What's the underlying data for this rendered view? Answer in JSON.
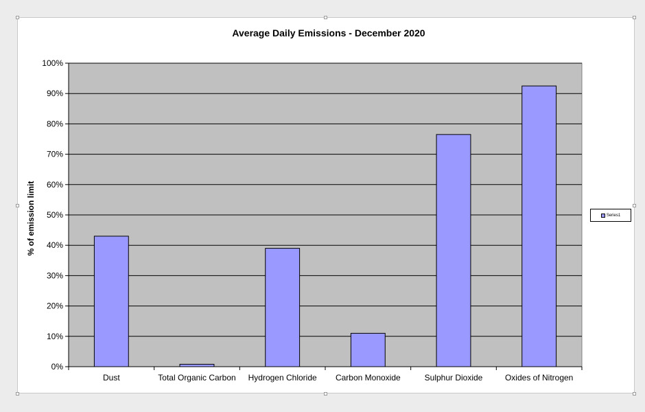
{
  "chart_data": {
    "type": "bar",
    "title": "Average Daily Emissions - December 2020",
    "xlabel": "",
    "ylabel": "% of emission limit",
    "categories": [
      "Dust",
      "Total Organic Carbon",
      "Hydrogen Chloride",
      "Carbon Monoxide",
      "Sulphur Dioxide",
      "Oxides of Nitrogen"
    ],
    "series": [
      {
        "name": "Series1",
        "values": [
          43,
          0.8,
          39,
          11,
          76.5,
          92.5
        ]
      }
    ],
    "ylim": [
      0,
      100
    ],
    "yticks": [
      0,
      10,
      20,
      30,
      40,
      50,
      60,
      70,
      80,
      90,
      100
    ],
    "ytick_labels": [
      "0%",
      "10%",
      "20%",
      "30%",
      "40%",
      "50%",
      "60%",
      "70%",
      "80%",
      "90%",
      "100%"
    ],
    "grid": true,
    "legend_position": "right",
    "colors": {
      "bar": "#9999ff",
      "plot_background": "#c0c0c0",
      "bar_outline": "#000000"
    }
  }
}
